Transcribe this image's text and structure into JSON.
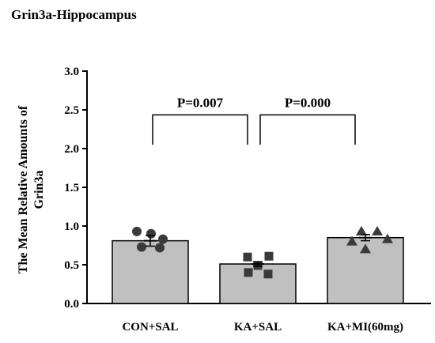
{
  "chart_data": {
    "type": "bar",
    "title": "Grin3a-Hippocampus",
    "xlabel": "",
    "ylabel": "The Mean Relative Amounts of Grin3a",
    "ylabel_lines": [
      "The Mean Relative Amounts of",
      "Grin3a"
    ],
    "ylim": [
      0,
      3.0
    ],
    "yticks": [
      "0.0",
      "0.5",
      "1.0",
      "1.5",
      "2.0",
      "2.5",
      "3.0"
    ],
    "categories": [
      "CON+SAL",
      "KA+SAL",
      "KA+MI(60mg)"
    ],
    "values": [
      0.81,
      0.51,
      0.85
    ],
    "errors": [
      0.07,
      0.03,
      0.04
    ],
    "bar_color": "#c0c0c0",
    "markers": [
      "circle",
      "square",
      "triangle"
    ],
    "points": [
      [
        0.93,
        0.9,
        0.83,
        0.73,
        0.72
      ],
      [
        0.6,
        0.61,
        0.49,
        0.4,
        0.38
      ],
      [
        0.93,
        0.93,
        0.83,
        0.8,
        0.7
      ]
    ],
    "comparisons": [
      {
        "from": 0,
        "to": 1,
        "label": "P=0.007",
        "y": 2.7
      },
      {
        "from": 1,
        "to": 2,
        "label": "P=0.000",
        "y": 2.7
      }
    ],
    "grid": false,
    "legend": "none"
  }
}
